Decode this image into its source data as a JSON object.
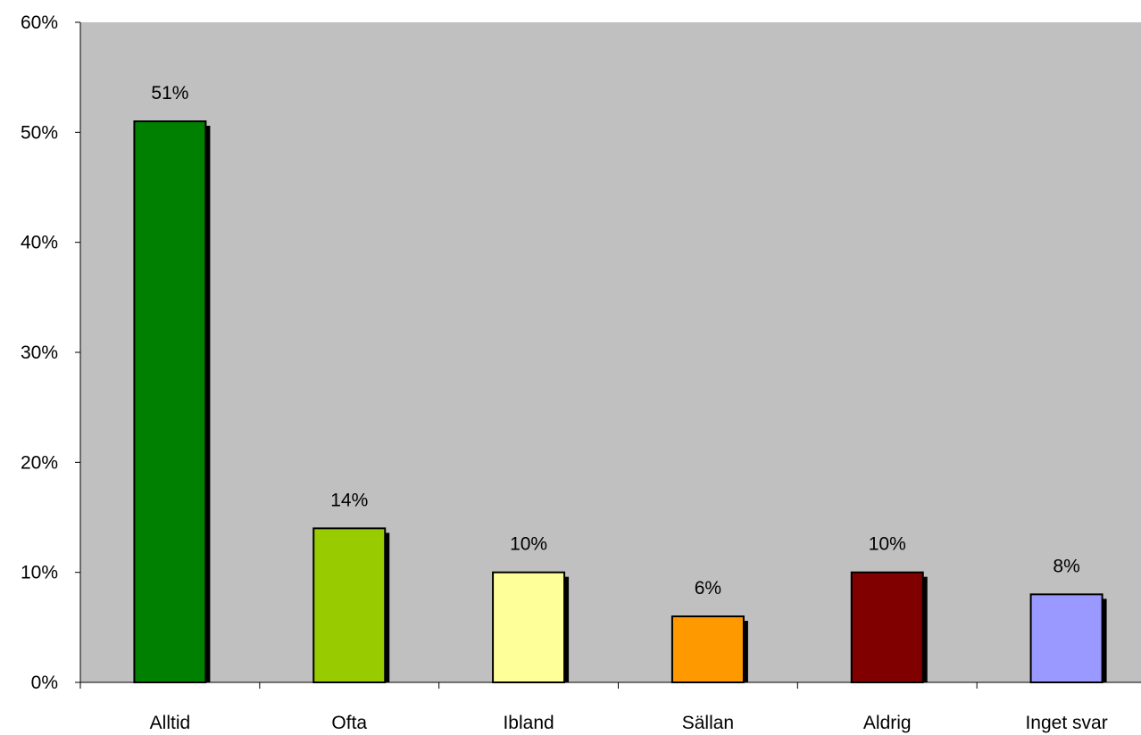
{
  "chart_data": {
    "type": "bar",
    "title": "",
    "xlabel": "",
    "ylabel": "",
    "categories": [
      "Alltid",
      "Ofta",
      "Ibland",
      "Sällan",
      "Aldrig",
      "Inget svar"
    ],
    "values": [
      51,
      14,
      10,
      6,
      10,
      8
    ],
    "data_labels": [
      "51%",
      "14%",
      "10%",
      "6%",
      "10%",
      "8%"
    ],
    "colors": [
      "#008000",
      "#99cc00",
      "#ffff99",
      "#ff9900",
      "#800000",
      "#9999ff"
    ],
    "ylim": [
      0,
      60
    ],
    "yticks": [
      0,
      10,
      20,
      30,
      40,
      50,
      60
    ],
    "ytick_labels": [
      "0%",
      "10%",
      "20%",
      "30%",
      "40%",
      "50%",
      "60%"
    ],
    "plot_background": "#c0c0c0",
    "grid": false,
    "legend": "none"
  }
}
